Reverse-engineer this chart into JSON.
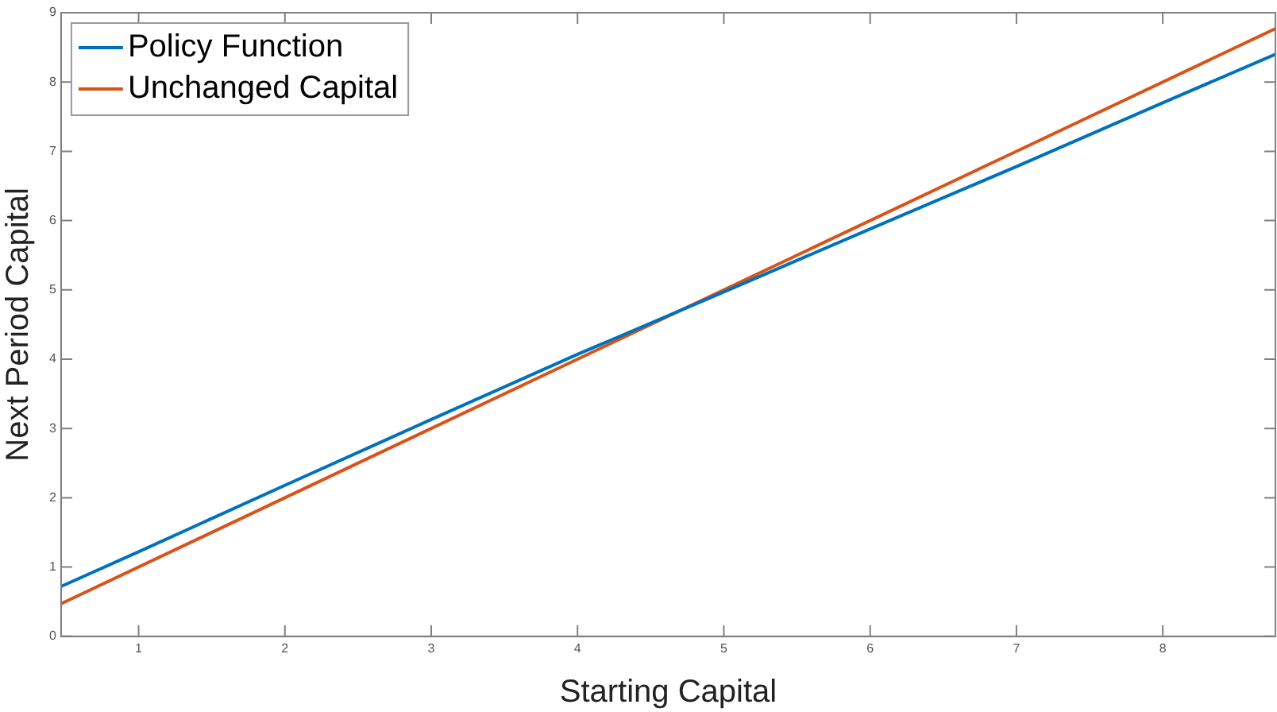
{
  "chart_data": {
    "type": "line",
    "xlabel": "Starting Capital",
    "ylabel": "Next Period Capital",
    "xlim": [
      0.47,
      8.77
    ],
    "xticks": [
      1,
      2,
      3,
      4,
      5,
      6,
      7,
      8
    ],
    "ylim": [
      0,
      9
    ],
    "yticks": [
      0,
      1,
      2,
      3,
      4,
      5,
      6,
      7,
      8,
      9
    ],
    "grid": false,
    "legend": "top left",
    "marker": "none",
    "line_style": "solid",
    "series": [
      {
        "name": "Policy Function",
        "color": "#0072bd",
        "x": [
          0.47,
          1,
          2,
          3,
          4,
          5,
          6,
          7,
          8,
          8.77
        ],
        "values": [
          0.72,
          1.22,
          2.18,
          3.13,
          4.07,
          4.97,
          5.88,
          6.78,
          7.7,
          8.4
        ]
      },
      {
        "name": "Unchanged Capital",
        "color": "#d95319",
        "x": [
          0.47,
          8.77
        ],
        "values": [
          0.47,
          8.77
        ]
      }
    ]
  }
}
